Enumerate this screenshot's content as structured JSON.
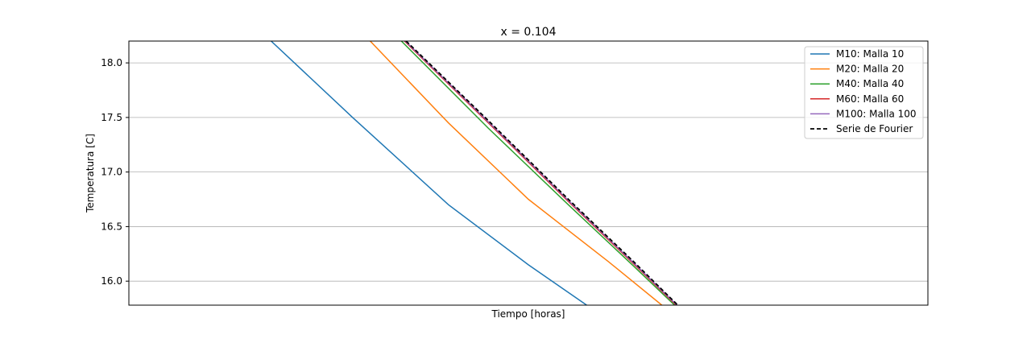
{
  "chart_data": {
    "type": "line",
    "title": "x = 0.104",
    "xlabel": "Tiempo [horas]",
    "ylabel": "Temperatura [C]",
    "xlim": [
      0,
      1
    ],
    "ylim": [
      15.78,
      18.2
    ],
    "yticks": [
      16.0,
      16.5,
      17.0,
      17.5,
      18.0
    ],
    "ytick_labels": [
      "16.0",
      "16.5",
      "17.0",
      "17.5",
      "18.0"
    ],
    "grid": "y",
    "legend_position": "top-right",
    "series": [
      {
        "name": "M10: Malla 10",
        "color": "#1f77b4",
        "dash": "solid",
        "x": [
          0.178,
          0.28,
          0.4,
          0.5,
          0.573
        ],
        "y": [
          18.2,
          17.5,
          16.7,
          16.15,
          15.78
        ]
      },
      {
        "name": "M20: Malla 20",
        "color": "#ff7f0e",
        "dash": "solid",
        "x": [
          0.302,
          0.4,
          0.5,
          0.6,
          0.667
        ],
        "y": [
          18.2,
          17.45,
          16.75,
          16.18,
          15.78
        ]
      },
      {
        "name": "M40: Malla 40",
        "color": "#2ca02c",
        "dash": "solid",
        "x": [
          0.341,
          0.45,
          0.55,
          0.63,
          0.683
        ],
        "y": [
          18.2,
          17.4,
          16.7,
          16.15,
          15.78
        ]
      },
      {
        "name": "M60: Malla 60",
        "color": "#d62728",
        "dash": "solid",
        "x": [
          0.345,
          0.45,
          0.55,
          0.63,
          0.685
        ],
        "y": [
          18.2,
          17.45,
          16.73,
          16.17,
          15.78
        ]
      },
      {
        "name": "M100: Malla 100",
        "color": "#9467bd",
        "dash": "solid",
        "x": [
          0.346,
          0.45,
          0.55,
          0.63,
          0.686
        ],
        "y": [
          18.2,
          17.46,
          16.74,
          16.18,
          15.78
        ]
      },
      {
        "name": "Serie de Fourier",
        "color": "#000000",
        "dash": "dashed",
        "x": [
          0.347,
          0.45,
          0.55,
          0.63,
          0.687
        ],
        "y": [
          18.2,
          17.47,
          16.75,
          16.19,
          15.78
        ]
      }
    ]
  }
}
